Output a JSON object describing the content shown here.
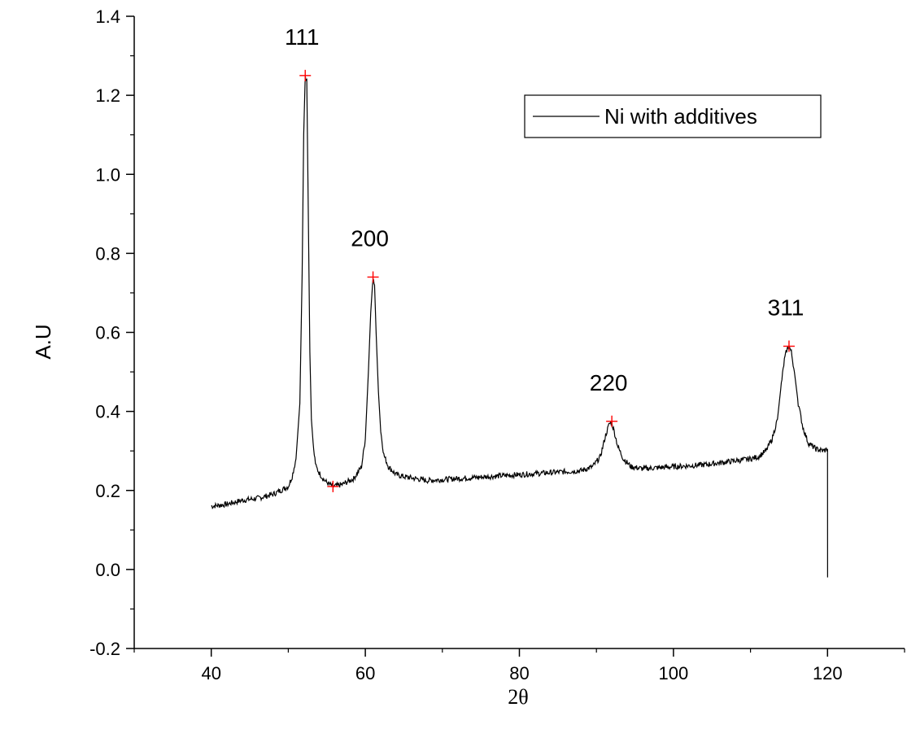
{
  "chart_data": {
    "type": "line",
    "title": "",
    "xlabel": "2θ",
    "ylabel": "A.U",
    "xlim": [
      30,
      130
    ],
    "ylim": [
      -0.2,
      1.4
    ],
    "x_ticks": [
      "40",
      "60",
      "80",
      "100",
      "120"
    ],
    "x_tick_values": [
      40,
      60,
      80,
      100,
      120
    ],
    "y_ticks": [
      "-0.2",
      "0.0",
      "0.2",
      "0.4",
      "0.6",
      "0.8",
      "1.0",
      "1.2",
      "1.4"
    ],
    "y_tick_values": [
      -0.2,
      0,
      0.2,
      0.4,
      0.6,
      0.8,
      1.0,
      1.2,
      1.4
    ],
    "grid": false,
    "legend": {
      "position": "top-right",
      "entries": [
        "Ni with additives"
      ]
    },
    "colors": {
      "line": "#000000",
      "marker": "#ff0000"
    },
    "series": [
      {
        "name": "Ni with additives",
        "x": [
          40.0,
          42.0,
          44.0,
          46.0,
          48.0,
          50.0,
          50.5,
          51.0,
          51.5,
          51.8,
          52.0,
          52.2,
          52.4,
          52.6,
          52.8,
          53.0,
          53.3,
          53.6,
          54.0,
          54.5,
          55.0,
          55.8,
          57.0,
          58.5,
          59.5,
          60.0,
          60.4,
          60.7,
          61.0,
          61.2,
          61.4,
          61.7,
          62.0,
          62.4,
          63.0,
          64.0,
          65.0,
          68.0,
          72.0,
          76.0,
          80.0,
          84.0,
          88.0,
          89.5,
          90.5,
          91.2,
          91.7,
          92.0,
          92.3,
          92.8,
          93.5,
          94.5,
          96.0,
          100.0,
          104.0,
          108.0,
          110.0,
          111.0,
          112.0,
          112.8,
          113.5,
          114.0,
          114.4,
          114.7,
          115.0,
          115.3,
          115.7,
          116.2,
          116.8,
          117.5,
          118.5,
          119.5,
          120.0,
          120.01
        ],
        "y": [
          0.16,
          0.165,
          0.175,
          0.18,
          0.19,
          0.21,
          0.235,
          0.28,
          0.42,
          0.75,
          1.1,
          1.25,
          1.24,
          0.9,
          0.55,
          0.38,
          0.3,
          0.26,
          0.245,
          0.23,
          0.22,
          0.21,
          0.215,
          0.23,
          0.26,
          0.33,
          0.5,
          0.65,
          0.74,
          0.72,
          0.6,
          0.45,
          0.35,
          0.29,
          0.26,
          0.24,
          0.235,
          0.225,
          0.23,
          0.235,
          0.24,
          0.245,
          0.25,
          0.26,
          0.285,
          0.34,
          0.37,
          0.37,
          0.35,
          0.31,
          0.28,
          0.26,
          0.255,
          0.26,
          0.265,
          0.275,
          0.28,
          0.285,
          0.3,
          0.33,
          0.38,
          0.47,
          0.53,
          0.555,
          0.565,
          0.55,
          0.5,
          0.42,
          0.36,
          0.32,
          0.305,
          0.3,
          0.305,
          -0.02
        ]
      }
    ],
    "peak_markers": [
      {
        "x": 52.2,
        "y": 1.25
      },
      {
        "x": 55.8,
        "y": 0.21
      },
      {
        "x": 61.0,
        "y": 0.74
      },
      {
        "x": 92.0,
        "y": 0.375
      },
      {
        "x": 115.0,
        "y": 0.565
      }
    ],
    "annotations": [
      {
        "text": "111",
        "x": 52.2,
        "y": 1.25
      },
      {
        "text": "200",
        "x": 61.0,
        "y": 0.74
      },
      {
        "text": "220",
        "x": 92.0,
        "y": 0.375
      },
      {
        "text": "311",
        "x": 115.0,
        "y": 0.565
      }
    ]
  }
}
